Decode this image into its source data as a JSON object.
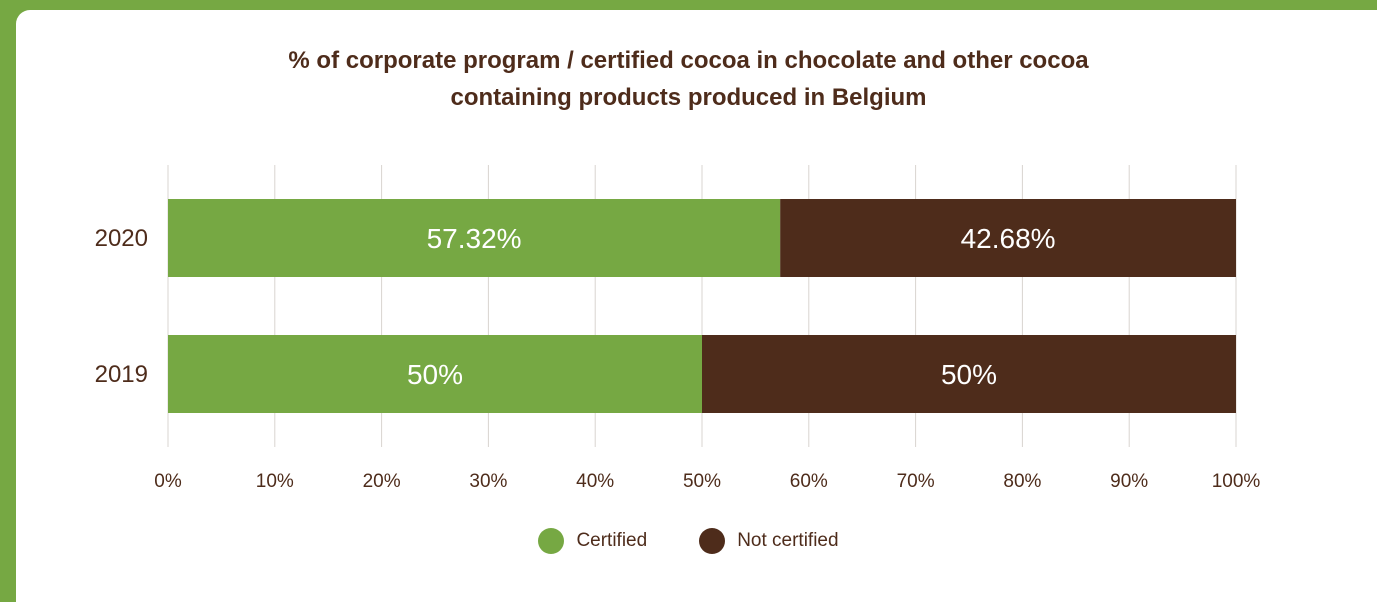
{
  "chart_data": {
    "type": "bar",
    "orientation": "horizontal",
    "stacked": true,
    "title_lines": [
      "% of corporate program / certified cocoa in chocolate and other cocoa",
      "containing products produced in Belgium"
    ],
    "categories": [
      "2020",
      "2019"
    ],
    "series": [
      {
        "name": "Certified",
        "values": [
          57.32,
          50
        ],
        "labels": [
          "57.32%",
          "50%"
        ],
        "color": "#76a843"
      },
      {
        "name": "Not certified",
        "values": [
          42.68,
          50
        ],
        "labels": [
          "42.68%",
          "50%"
        ],
        "color": "#4e2c1b"
      }
    ],
    "xlim": [
      0,
      100
    ],
    "xticks": [
      "0%",
      "10%",
      "20%",
      "30%",
      "40%",
      "50%",
      "60%",
      "70%",
      "80%",
      "90%",
      "100%"
    ],
    "grid": true,
    "legend_position": "bottom-center"
  }
}
